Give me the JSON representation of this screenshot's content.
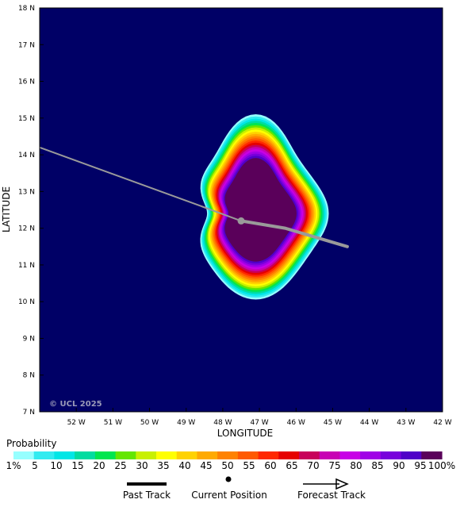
{
  "chart_data": {
    "type": "heatmap",
    "title": "",
    "xlabel": "LONGITUDE",
    "ylabel": "LATITUDE",
    "xlim": [
      53,
      42
    ],
    "ylim": [
      7,
      18
    ],
    "x_ticks": [
      "52 W",
      "51 W",
      "50 W",
      "49 W",
      "48 W",
      "47 W",
      "46 W",
      "45 W",
      "44 W",
      "43 W",
      "42 W"
    ],
    "y_ticks": [
      "7 N",
      "8 N",
      "9 N",
      "10 N",
      "11 N",
      "12 N",
      "13 N",
      "14 N",
      "15 N",
      "16 N",
      "17 N",
      "18 N"
    ],
    "copyright": "© UCL 2025",
    "background_color": "#000066",
    "center": {
      "lon_w": 47.1,
      "lat_n": 12.4
    },
    "current_position": {
      "lon_w": 47.5,
      "lat_n": 12.2
    },
    "past_track": [
      {
        "lon_w": 53.0,
        "lat_n": 14.2
      },
      {
        "lon_w": 49.0,
        "lat_n": 12.75
      },
      {
        "lon_w": 47.5,
        "lat_n": 12.2
      }
    ],
    "forecast_track": [
      {
        "lon_w": 47.5,
        "lat_n": 12.2
      },
      {
        "lon_w": 46.3,
        "lat_n": 12.0
      },
      {
        "lon_w": 44.6,
        "lat_n": 11.5
      }
    ]
  },
  "legend": {
    "title": "Probability",
    "labels": [
      "1%",
      "5",
      "10",
      "15",
      "20",
      "25",
      "30",
      "35",
      "40",
      "45",
      "50",
      "55",
      "60",
      "65",
      "70",
      "75",
      "80",
      "85",
      "90",
      "95",
      "100%"
    ],
    "colors": [
      "#96ffff",
      "#32ebf0",
      "#00e6e6",
      "#00dca0",
      "#00e650",
      "#64e600",
      "#c8f000",
      "#ffff00",
      "#ffd200",
      "#ffaa00",
      "#ff8200",
      "#ff5a00",
      "#ff2800",
      "#e60000",
      "#c8005a",
      "#c800b4",
      "#c800e6",
      "#a000e6",
      "#7800dc",
      "#5000c8",
      "#5a005a"
    ],
    "past_track_label": "Past Track",
    "current_position_label": "Current Position",
    "forecast_track_label": "Forecast Track"
  }
}
